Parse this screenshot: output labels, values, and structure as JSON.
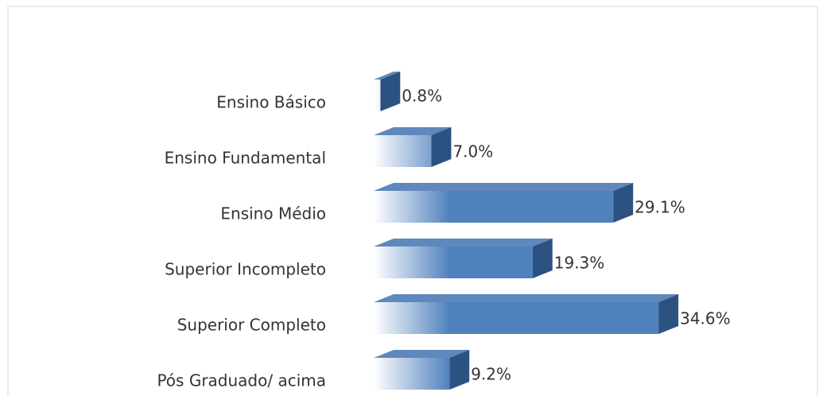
{
  "chart_data": {
    "type": "bar",
    "orientation": "horizontal",
    "categories": [
      "Ensino Básico",
      "Ensino Fundamental",
      "Ensino Médio",
      "Superior Incompleto",
      "Superior Completo",
      "Pós Graduado/ acima"
    ],
    "values": [
      0.8,
      7.0,
      29.1,
      19.3,
      34.6,
      9.2
    ],
    "value_labels": [
      "0.8%",
      "7.0%",
      "29.1%",
      "19.3%",
      "34.6%",
      "9.2%"
    ],
    "color": "#4f81bd"
  }
}
